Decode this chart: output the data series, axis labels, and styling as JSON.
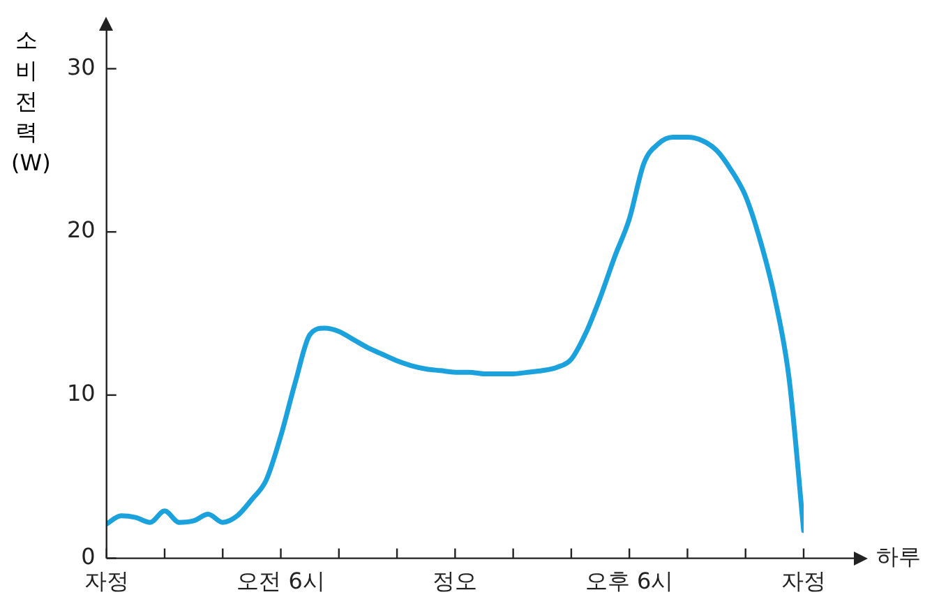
{
  "chart_data": {
    "type": "line",
    "xlabel": "하루",
    "ylabel": "소비 전력(W)",
    "categories": [
      "자정",
      null,
      null,
      null,
      null,
      null,
      null,
      null,
      null,
      null,
      null,
      null,
      "오전 6시",
      null,
      null,
      null,
      null,
      null,
      null,
      null,
      null,
      null,
      null,
      null,
      "정오",
      null,
      null,
      null,
      null,
      null,
      null,
      null,
      null,
      null,
      null,
      null,
      "오후 6시",
      null,
      null,
      null,
      null,
      null,
      null,
      null,
      null,
      null,
      null,
      null,
      "자정"
    ],
    "series": [
      {
        "color": "#1ba1dc",
        "values": [
          2.1,
          2.6,
          2.5,
          2.2,
          2.9,
          2.2,
          2.3,
          2.7,
          2.2,
          2.6,
          3.6,
          4.8,
          7.5,
          10.8,
          13.7,
          14.1,
          13.9,
          13.4,
          12.9,
          12.5,
          12.1,
          11.8,
          11.6,
          11.5,
          11.4,
          11.4,
          11.3,
          11.3,
          11.3,
          11.4,
          11.5,
          11.7,
          12.2,
          13.8,
          16.0,
          18.5,
          20.8,
          24.2,
          25.4,
          25.8,
          25.8,
          25.6,
          25.0,
          23.8,
          22.2,
          19.5,
          16.0,
          11.0,
          1.7
        ]
      }
    ],
    "ylim": [
      0,
      32.5
    ],
    "yticks": [
      0,
      10,
      20,
      30
    ],
    "grid": false,
    "legend": false,
    "marker": "none",
    "line_style": "solid"
  }
}
